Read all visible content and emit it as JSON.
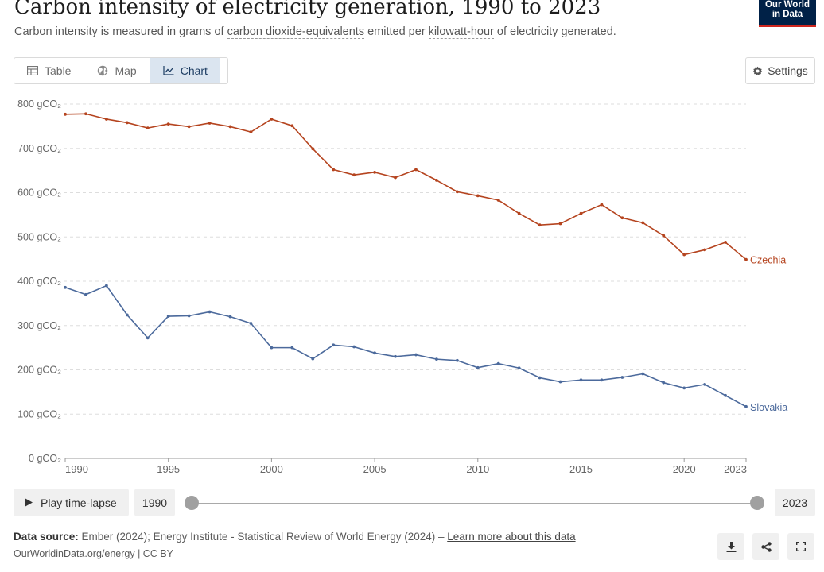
{
  "header": {
    "title": "Carbon intensity of electricity generation, 1990 to 2023",
    "subtitle_prefix": "Carbon intensity is measured in grams of ",
    "subtitle_term1": "carbon dioxide-equivalents",
    "subtitle_mid": " emitted per ",
    "subtitle_term2": "kilowatt-hour",
    "subtitle_suffix": " of electricity generated.",
    "logo_line1": "Our World",
    "logo_line2": "in Data"
  },
  "tabs": [
    {
      "label": "Table",
      "icon": "table-icon"
    },
    {
      "label": "Map",
      "icon": "globe-icon"
    },
    {
      "label": "Chart",
      "icon": "line-chart-icon"
    }
  ],
  "settings_label": "Settings",
  "timeline": {
    "play_label": "Play time-lapse",
    "start_year": "1990",
    "end_year": "2023"
  },
  "footer": {
    "source_label": "Data source:",
    "source_text": " Ember (2024); Energy Institute - Statistical Review of World Energy (2024) – ",
    "source_link": "Learn more about this data",
    "credit": "OurWorldinData.org/energy | CC BY"
  },
  "colors": {
    "czechia": "#b5441f",
    "slovakia": "#4c6a9c",
    "grid": "#dddddd",
    "active_tab": "#dbe5f0"
  },
  "chart_data": {
    "type": "line",
    "title": "Carbon intensity of electricity generation, 1990 to 2023",
    "xlabel": "",
    "ylabel": "",
    "xlim": [
      1990,
      2023
    ],
    "ylim": [
      0,
      800
    ],
    "y_ticks": [
      {
        "value": 0,
        "label": "0 gCO₂"
      },
      {
        "value": 100,
        "label": "100 gCO₂"
      },
      {
        "value": 200,
        "label": "200 gCO₂"
      },
      {
        "value": 300,
        "label": "300 gCO₂"
      },
      {
        "value": 400,
        "label": "400 gCO₂"
      },
      {
        "value": 500,
        "label": "500 gCO₂"
      },
      {
        "value": 600,
        "label": "600 gCO₂"
      },
      {
        "value": 700,
        "label": "700 gCO₂"
      },
      {
        "value": 800,
        "label": "800 gCO₂"
      }
    ],
    "x_ticks": [
      1990,
      1995,
      2000,
      2005,
      2010,
      2015,
      2020,
      2023
    ],
    "grid": true,
    "x": [
      1990,
      1991,
      1992,
      1993,
      1994,
      1995,
      1996,
      1997,
      1998,
      1999,
      2000,
      2001,
      2002,
      2003,
      2004,
      2005,
      2006,
      2007,
      2008,
      2009,
      2010,
      2011,
      2012,
      2013,
      2014,
      2015,
      2016,
      2017,
      2018,
      2019,
      2020,
      2021,
      2022,
      2023
    ],
    "series": [
      {
        "name": "Czechia",
        "color": "#b5441f",
        "values": [
          777,
          778,
          766,
          758,
          746,
          755,
          749,
          757,
          749,
          737,
          766,
          751,
          699,
          652,
          640,
          646,
          634,
          652,
          628,
          602,
          593,
          583,
          553,
          527,
          530,
          553,
          573,
          543,
          532,
          503,
          460,
          471,
          488,
          449
        ]
      },
      {
        "name": "Slovakia",
        "color": "#4c6a9c",
        "values": [
          386,
          370,
          390,
          324,
          272,
          321,
          322,
          331,
          320,
          305,
          250,
          250,
          225,
          256,
          252,
          238,
          230,
          234,
          224,
          221,
          205,
          214,
          204,
          182,
          173,
          177,
          177,
          183,
          191,
          171,
          159,
          167,
          142,
          117
        ]
      }
    ]
  }
}
